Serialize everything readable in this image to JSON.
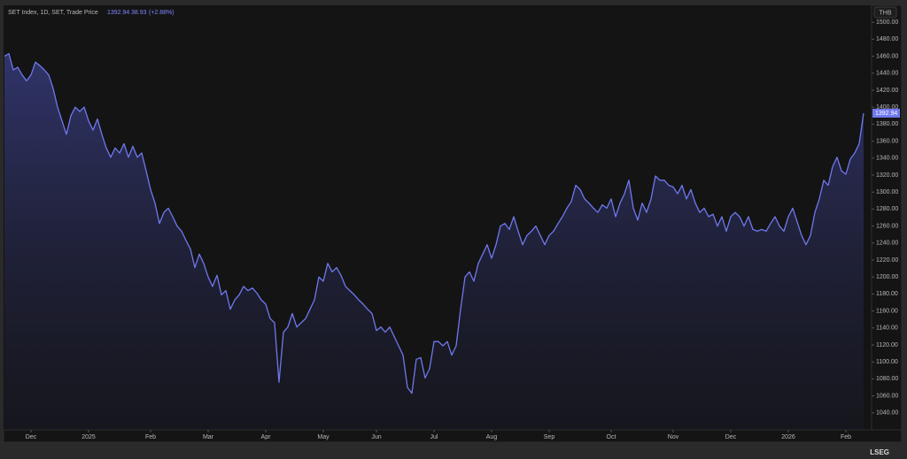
{
  "chart_data": {
    "type": "area",
    "title": "SET Index, 1D, SET, Trade Price",
    "change": 38.93,
    "change_pct": "(+2.88%)",
    "currency": "THB",
    "brand": "LSEG",
    "color": "#6f78ee",
    "categories": [
      null,
      null,
      null,
      null,
      null,
      null,
      "Dec",
      null,
      null,
      null,
      null,
      null,
      null,
      null,
      null,
      null,
      null,
      null,
      null,
      "2025",
      null,
      null,
      null,
      null,
      null,
      null,
      null,
      null,
      null,
      null,
      null,
      null,
      null,
      "Feb",
      null,
      null,
      null,
      null,
      null,
      null,
      null,
      null,
      null,
      null,
      null,
      null,
      "Mar",
      null,
      null,
      null,
      null,
      null,
      null,
      null,
      null,
      null,
      null,
      null,
      null,
      "Apr",
      null,
      null,
      null,
      null,
      null,
      null,
      null,
      null,
      null,
      null,
      null,
      null,
      "May",
      null,
      null,
      null,
      null,
      null,
      null,
      null,
      null,
      null,
      null,
      null,
      "Jun",
      null,
      null,
      null,
      null,
      null,
      null,
      null,
      null,
      null,
      null,
      null,
      null,
      "Jul",
      null,
      null,
      null,
      null,
      null,
      null,
      null,
      null,
      null,
      null,
      null,
      null,
      "Aug",
      null,
      null,
      null,
      null,
      null,
      null,
      null,
      null,
      null,
      null,
      null,
      null,
      "Sep",
      null,
      null,
      null,
      null,
      null,
      null,
      null,
      null,
      null,
      null,
      null,
      null,
      null,
      "Oct",
      null,
      null,
      null,
      null,
      null,
      null,
      null,
      null,
      null,
      null,
      null,
      null,
      null,
      "Nov",
      null,
      null,
      null,
      null,
      null,
      null,
      null,
      null,
      null,
      null,
      null,
      null,
      "Dec",
      null,
      null,
      null,
      null,
      null,
      null,
      null,
      null,
      null,
      null,
      null,
      null,
      "2026",
      null,
      null,
      null,
      null,
      null,
      null,
      null,
      null,
      null,
      null,
      null,
      null,
      "Feb",
      null,
      null,
      null,
      null
    ],
    "values": [
      1460,
      1463,
      1444,
      1447,
      1438,
      1431,
      1438,
      1453,
      1449,
      1444,
      1438,
      1422,
      1400,
      1384,
      1368,
      1390,
      1400,
      1395,
      1400,
      1384,
      1373,
      1386,
      1368,
      1352,
      1341,
      1352,
      1346,
      1357,
      1341,
      1354,
      1341,
      1346,
      1325,
      1303,
      1287,
      1263,
      1276,
      1281,
      1271,
      1260,
      1254,
      1243,
      1233,
      1211,
      1227,
      1216,
      1200,
      1189,
      1202,
      1179,
      1184,
      1162,
      1173,
      1179,
      1189,
      1184,
      1187,
      1181,
      1173,
      1168,
      1151,
      1146,
      1076,
      1135,
      1141,
      1157,
      1141,
      1146,
      1151,
      1162,
      1173,
      1200,
      1195,
      1216,
      1206,
      1211,
      1202,
      1189,
      1184,
      1179,
      1173,
      1168,
      1162,
      1157,
      1137,
      1141,
      1135,
      1141,
      1130,
      1119,
      1108,
      1070,
      1063,
      1103,
      1105,
      1081,
      1092,
      1124,
      1124,
      1119,
      1124,
      1108,
      1119,
      1162,
      1200,
      1206,
      1195,
      1216,
      1227,
      1238,
      1222,
      1238,
      1260,
      1263,
      1256,
      1271,
      1254,
      1238,
      1249,
      1254,
      1260,
      1249,
      1238,
      1249,
      1254,
      1263,
      1271,
      1281,
      1289,
      1308,
      1303,
      1292,
      1287,
      1281,
      1276,
      1285,
      1281,
      1292,
      1271,
      1287,
      1298,
      1314,
      1281,
      1267,
      1287,
      1276,
      1292,
      1319,
      1314,
      1314,
      1308,
      1306,
      1298,
      1308,
      1292,
      1303,
      1287,
      1276,
      1281,
      1271,
      1274,
      1260,
      1271,
      1254,
      1271,
      1276,
      1271,
      1260,
      1271,
      1256,
      1254,
      1256,
      1254,
      1263,
      1271,
      1260,
      1254,
      1271,
      1281,
      1265,
      1249,
      1238,
      1249,
      1276,
      1292,
      1314,
      1308,
      1330,
      1341,
      1325,
      1321,
      1339,
      1346,
      1357,
      1392.94
    ],
    "ylim": [
      1020,
      1520
    ],
    "yticks": [
      {
        "value": 1040,
        "label": "1040.00"
      },
      {
        "value": 1060,
        "label": "1060.00"
      },
      {
        "value": 1080,
        "label": "1080.00"
      },
      {
        "value": 1100,
        "label": "1100.00"
      },
      {
        "value": 1120,
        "label": "1120.00"
      },
      {
        "value": 1140,
        "label": "1140.00"
      },
      {
        "value": 1160,
        "label": "1160.00"
      },
      {
        "value": 1180,
        "label": "1180.00"
      },
      {
        "value": 1200,
        "label": "1200.00"
      },
      {
        "value": 1220,
        "label": "1220.00"
      },
      {
        "value": 1240,
        "label": "1240.00"
      },
      {
        "value": 1260,
        "label": "1260.00"
      },
      {
        "value": 1280,
        "label": "1280.00"
      },
      {
        "value": 1300,
        "label": "1300.00"
      },
      {
        "value": 1320,
        "label": "1320.00"
      },
      {
        "value": 1340,
        "label": "1340.00"
      },
      {
        "value": 1360,
        "label": "1360.00"
      },
      {
        "value": 1380,
        "label": "1380.00"
      },
      {
        "value": 1400,
        "label": "1400.00"
      },
      {
        "value": 1420,
        "label": "1420.00"
      },
      {
        "value": 1440,
        "label": "1440.00"
      },
      {
        "value": 1460,
        "label": "1460.00"
      },
      {
        "value": 1480,
        "label": "1480.00"
      },
      {
        "value": 1500,
        "label": "1500.00"
      }
    ]
  }
}
